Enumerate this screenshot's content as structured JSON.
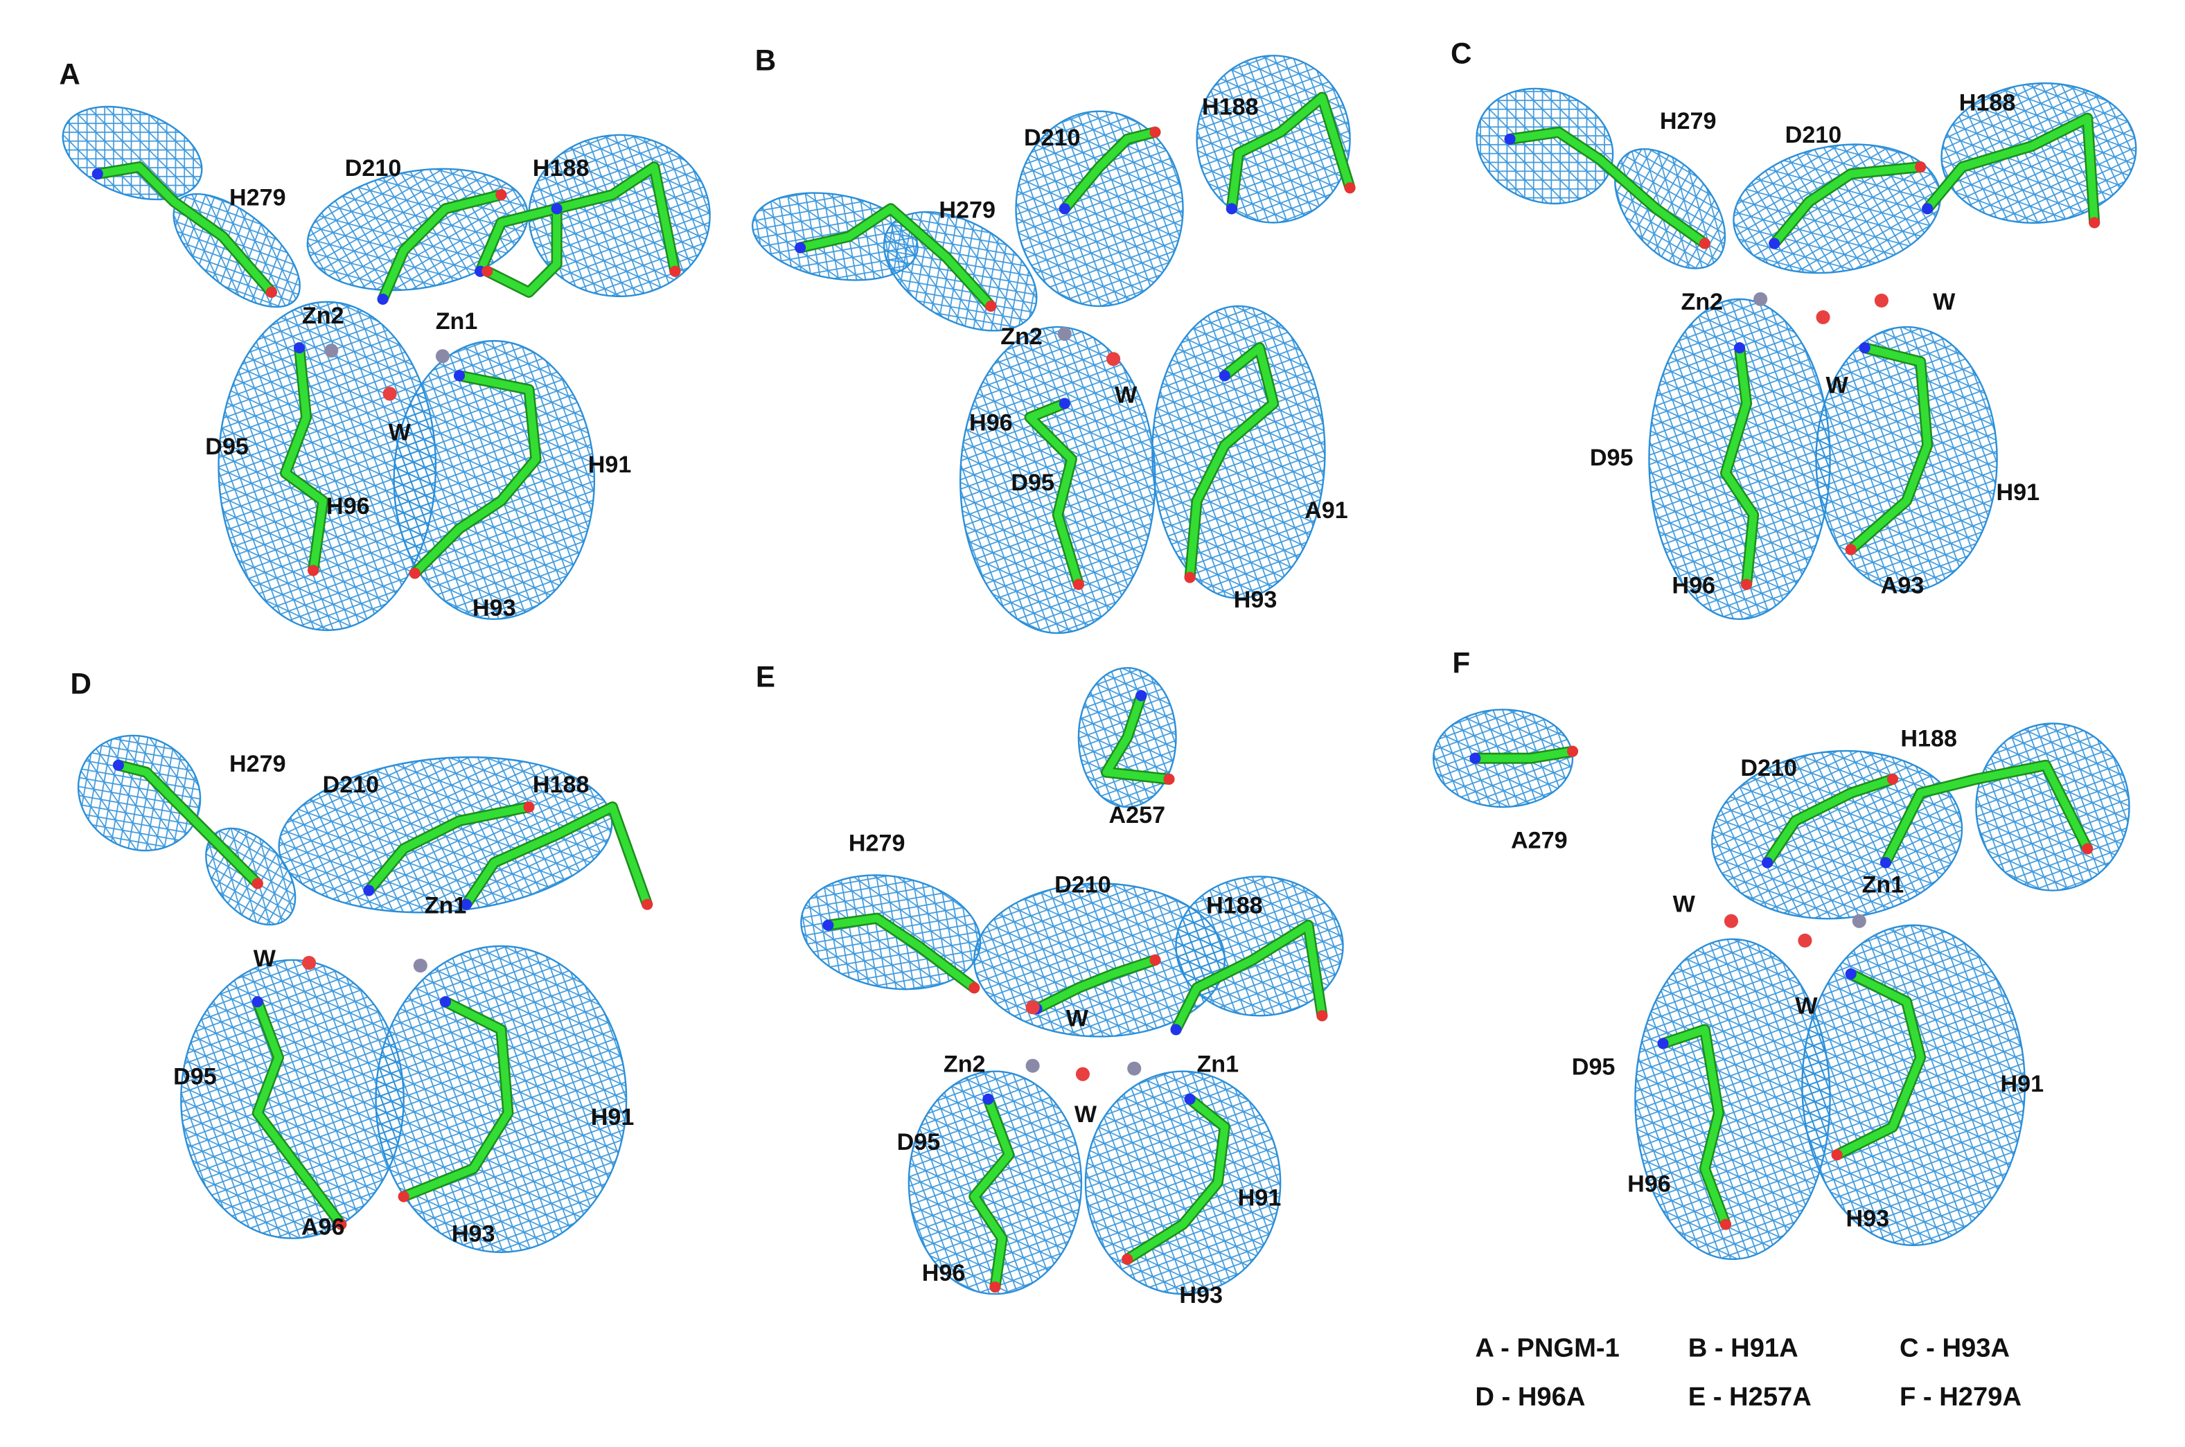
{
  "panels": [
    {
      "letter": "A",
      "labels": [
        "H279",
        "D210",
        "H188",
        "Zn2",
        "Zn1",
        "W",
        "D95",
        "H96",
        "H91",
        "H93"
      ]
    },
    {
      "letter": "B",
      "labels": [
        "H188",
        "D210",
        "H279",
        "Zn2",
        "W",
        "H96",
        "D95",
        "A91",
        "H93"
      ]
    },
    {
      "letter": "C",
      "labels": [
        "H279",
        "D210",
        "H188",
        "Zn2",
        "W",
        "W",
        "D95",
        "H91",
        "H96",
        "A93"
      ]
    },
    {
      "letter": "D",
      "labels": [
        "H279",
        "D210",
        "H188",
        "W",
        "Zn1",
        "D95",
        "H91",
        "A96",
        "H93"
      ]
    },
    {
      "letter": "E",
      "labels": [
        "A257",
        "H279",
        "D210",
        "H188",
        "W",
        "Zn2",
        "Zn1",
        "W",
        "D95",
        "H91",
        "H96",
        "H93"
      ]
    },
    {
      "letter": "F",
      "labels": [
        "A279",
        "D210",
        "H188",
        "W",
        "Zn1",
        "W",
        "D95",
        "H91",
        "H96",
        "H93"
      ]
    }
  ],
  "legend": [
    [
      "A - PNGM-1",
      "B - H91A",
      "C - H93A"
    ],
    [
      "D - H96A",
      "E - H257A",
      "F - H279A"
    ]
  ]
}
